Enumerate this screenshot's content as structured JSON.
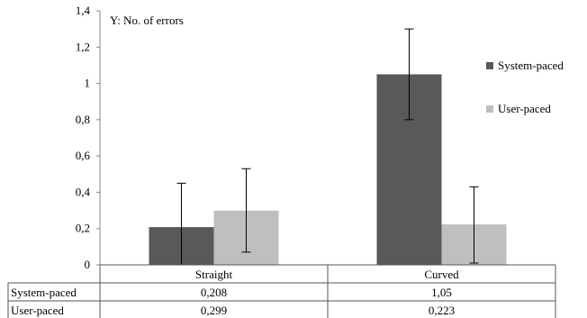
{
  "chart_data": {
    "type": "bar",
    "annotation": "Y:  No. of errors",
    "categories": [
      "Straight",
      "Curved"
    ],
    "series": [
      {
        "name": "System-paced",
        "values": [
          0.208,
          1.05
        ],
        "error_low": [
          0,
          0.8
        ],
        "error_high": [
          0.45,
          1.3
        ],
        "table_values": [
          "0,208",
          "1,05"
        ],
        "color": "#595959"
      },
      {
        "name": "User-paced",
        "values": [
          0.299,
          0.223
        ],
        "error_low": [
          0.07,
          0.01
        ],
        "error_high": [
          0.53,
          0.43
        ],
        "table_values": [
          "0,299",
          "0,223"
        ],
        "color": "#bfbfbf"
      }
    ],
    "ylim": [
      0,
      1.4
    ],
    "yticks": [
      0,
      0.2,
      0.4,
      0.6,
      0.8,
      1,
      1.2,
      1.4
    ],
    "ytick_labels": [
      "0",
      "0,2",
      "0,4",
      "0,6",
      "0,8",
      "1",
      "1,2",
      "1,4"
    ],
    "legend_position": "right",
    "grid": false,
    "data_table": true
  }
}
